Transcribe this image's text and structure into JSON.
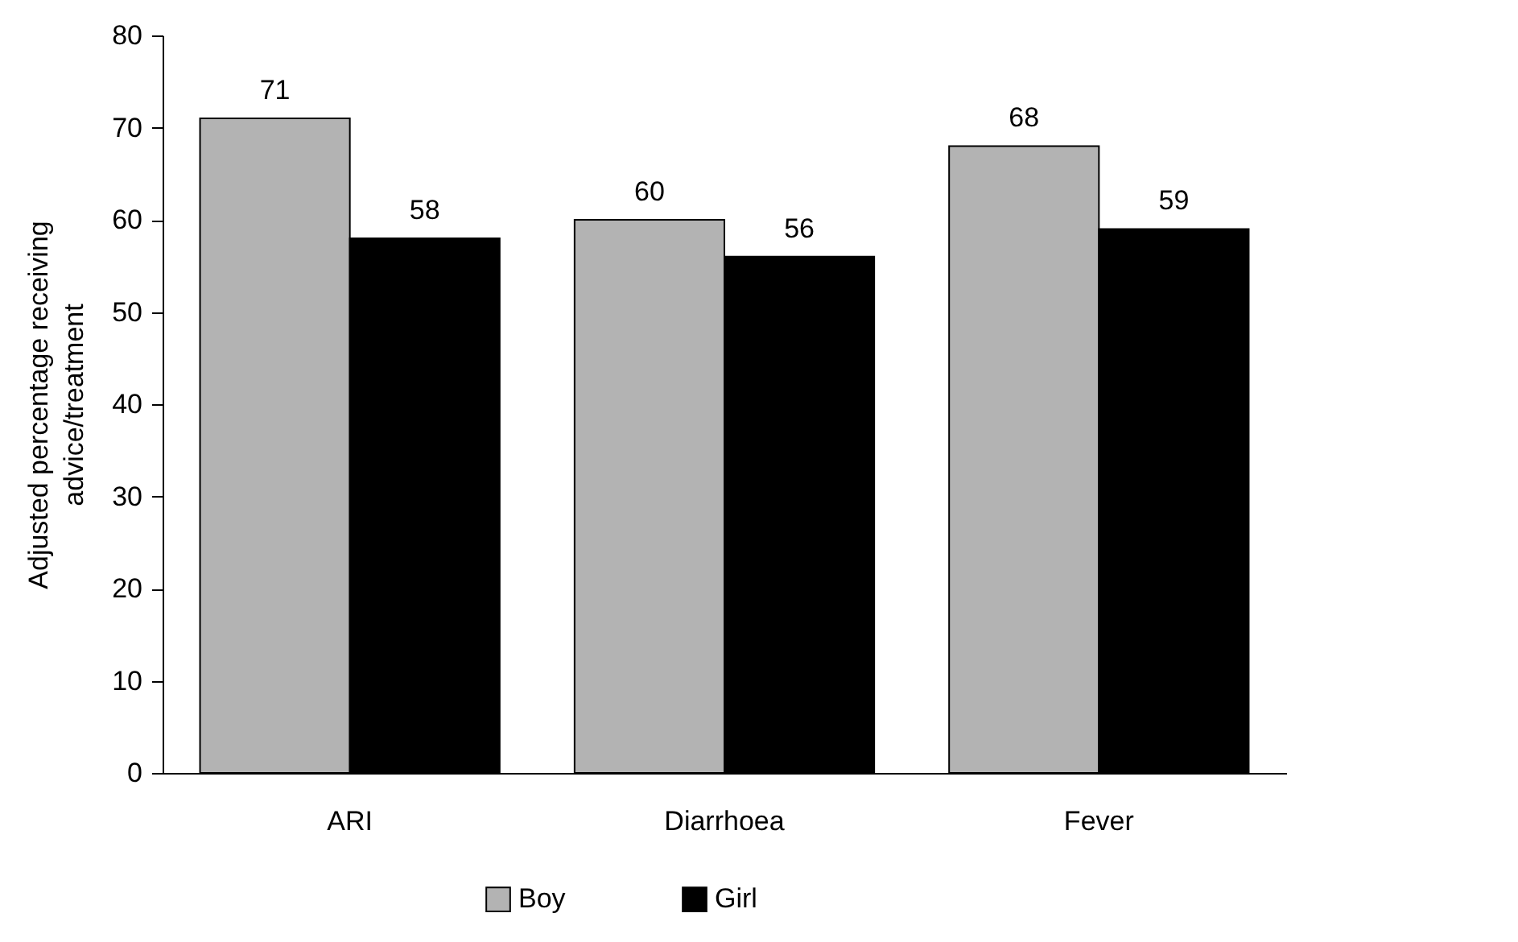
{
  "chart_data": {
    "type": "bar",
    "ylabel": "Adjusted percentage receiving\nadvice/treatment",
    "categories": [
      "ARI",
      "Diarrhoea",
      "Fever"
    ],
    "series": [
      {
        "name": "Boy",
        "color": "#b3b3b3",
        "values": [
          71,
          60,
          68
        ]
      },
      {
        "name": "Girl",
        "color": "#000000",
        "values": [
          58,
          56,
          59
        ]
      }
    ],
    "ylim": [
      0,
      80
    ],
    "yticks": [
      0,
      10,
      20,
      30,
      40,
      50,
      60,
      70,
      80
    ],
    "grid": false,
    "legend": "bottom",
    "data_labels": true
  }
}
